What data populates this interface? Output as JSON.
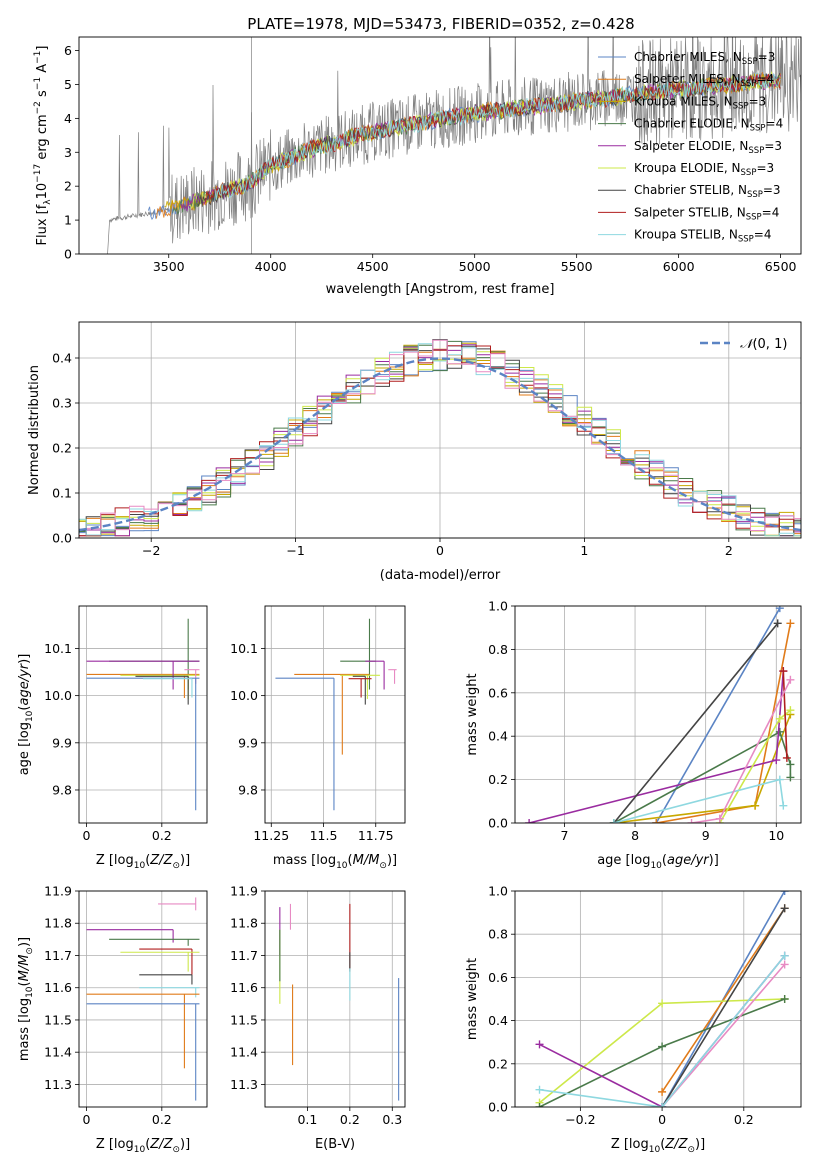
{
  "title": "PLATE=1978, MJD=53473, FIBERID=0352, z=0.428",
  "colors": {
    "Chabrier MILES": "#5b84c4",
    "Salpeter MILES": "#e07b1a",
    "Kroupa MILES": "#c8a800",
    "Chabrier ELODIE": "#4a7a4a",
    "Salpeter ELODIE": "#9a2ca0",
    "Kroupa ELODIE": "#cde84a",
    "Chabrier STELIB": "#444444",
    "Salpeter STELIB": "#b01e1e",
    "Kroupa STELIB": "#8ed8e0",
    "pink": "#e78ac3",
    "data": "#808080"
  },
  "chart_data": [
    {
      "type": "line",
      "id": "spectrum",
      "title": "PLATE=1978, MJD=53473, FIBERID=0352, z=0.428",
      "xlabel": "wavelength [Angstrom, rest frame]",
      "ylabel": "Flux [f_λ 10^-17 erg cm^-2 s^-1 A^-1]",
      "xlim": [
        3060,
        6600
      ],
      "ylim": [
        0,
        6.4
      ],
      "xticks": [
        3500,
        4000,
        4500,
        5000,
        5500,
        6000,
        6500
      ],
      "yticks": [
        0,
        1,
        2,
        3,
        4,
        5,
        6
      ],
      "grid": false,
      "legend_position": "upper right",
      "legend": [
        {
          "label": "Chabrier MILES, N_SSP=3",
          "color": "#5b84c4"
        },
        {
          "label": "Salpeter MILES, N_SSP=4",
          "color": "#e07b1a"
        },
        {
          "label": "Kroupa MILES, N_SSP=3",
          "color": "#c8a800"
        },
        {
          "label": "Chabrier ELODIE, N_SSP=4",
          "color": "#4a7a4a"
        },
        {
          "label": "Salpeter ELODIE, N_SSP=3",
          "color": "#9a2ca0"
        },
        {
          "label": "Kroupa ELODIE, N_SSP=3",
          "color": "#cde84a"
        },
        {
          "label": "Chabrier STELIB, N_SSP=3",
          "color": "#444444"
        },
        {
          "label": "Salpeter STELIB, N_SSP=4",
          "color": "#b01e1e"
        },
        {
          "label": "Kroupa STELIB, N_SSP=4",
          "color": "#8ed8e0"
        }
      ],
      "legend_text": [
        {
          "pre": "Chabrier MILES, N",
          "sub": "SSP",
          "post": "=3"
        },
        {
          "pre": "Salpeter MILES, N",
          "sub": "SSP",
          "post": "=4"
        },
        {
          "pre": "Kroupa MILES, N",
          "sub": "SSP",
          "post": "=3"
        },
        {
          "pre": "Chabrier ELODIE, N",
          "sub": "SSP",
          "post": "=4"
        },
        {
          "pre": "Salpeter ELODIE, N",
          "sub": "SSP",
          "post": "=3"
        },
        {
          "pre": "Kroupa ELODIE, N",
          "sub": "SSP",
          "post": "=3"
        },
        {
          "pre": "Chabrier STELIB, N",
          "sub": "SSP",
          "post": "=3"
        },
        {
          "pre": "Salpeter STELIB, N",
          "sub": "SSP",
          "post": "=4"
        },
        {
          "pre": "Kroupa STELIB, N",
          "sub": "SSP",
          "post": "=4"
        }
      ],
      "trend_wavelength": [
        3200,
        3500,
        3700,
        3900,
        4000,
        4200,
        4500,
        4800,
        5000,
        5500,
        6000,
        6500
      ],
      "trend_flux": [
        1.0,
        1.3,
        1.7,
        2.1,
        2.6,
        3.1,
        3.6,
        3.95,
        4.15,
        4.5,
        4.85,
        5.15
      ]
    },
    {
      "type": "line",
      "id": "residuals",
      "xlabel": "(data-model)/error",
      "ylabel": "Normed distribution",
      "xlim": [
        -2.5,
        2.5
      ],
      "ylim": [
        0,
        0.48
      ],
      "xticks": [
        -2,
        -1,
        0,
        1,
        2
      ],
      "yticks": [
        0.0,
        0.1,
        0.2,
        0.3,
        0.4
      ],
      "grid": true,
      "legend_position": "upper right",
      "legend": [
        {
          "label": "N(0,1)",
          "color": "#5b84c4"
        }
      ]
    },
    {
      "type": "scatter",
      "id": "age_vs_Z",
      "xlabel": "Z [log10(Z/Z_sun)]",
      "ylabel": "age [log10(age/yr)]",
      "xlim": [
        -0.02,
        0.32
      ],
      "ylim": [
        9.73,
        10.19
      ],
      "xticks": [
        0.0,
        0.2
      ],
      "yticks": [
        9.8,
        9.9,
        10.0,
        10.1
      ],
      "grid": true,
      "errorbars": [
        {
          "x": 0.27,
          "y": 10.073,
          "xerr_minus": 0.21,
          "xerr_plus": 0.03,
          "yerr_minus": 0.06,
          "yerr_plus": 0.09,
          "color": "#4a7a4a"
        },
        {
          "x": 0.26,
          "y": 10.045,
          "xerr_minus": 0.26,
          "xerr_plus": 0.04,
          "yerr_minus": 0.05,
          "yerr_plus": 0.0,
          "color": "#e07b1a"
        },
        {
          "x": 0.27,
          "y": 10.043,
          "xerr_minus": 0.18,
          "xerr_plus": 0.03,
          "yerr_minus": 0.05,
          "yerr_plus": 0.0,
          "color": "#cde84a"
        },
        {
          "x": 0.23,
          "y": 10.073,
          "xerr_minus": 0.23,
          "xerr_plus": 0.07,
          "yerr_minus": 0.06,
          "yerr_plus": 0.0,
          "color": "#9a2ca0"
        },
        {
          "x": 0.29,
          "y": 10.055,
          "xerr_minus": 0.03,
          "xerr_plus": 0.01,
          "yerr_minus": 0.03,
          "yerr_plus": 0.0,
          "color": "#e78ac3"
        },
        {
          "x": 0.29,
          "y": 10.037,
          "xerr_minus": 0.29,
          "xerr_plus": 0.01,
          "yerr_minus": 0.28,
          "yerr_plus": 0.0,
          "color": "#5b84c4"
        },
        {
          "x": 0.27,
          "y": 10.041,
          "xerr_minus": 0.14,
          "xerr_plus": 0.0,
          "yerr_minus": 0.06,
          "yerr_plus": 0.0,
          "color": "#444444"
        },
        {
          "x": 0.28,
          "y": 10.036,
          "xerr_minus": 0.13,
          "xerr_plus": 0.0,
          "yerr_minus": 0.04,
          "yerr_plus": 0.0,
          "color": "#8ed8e0"
        }
      ]
    },
    {
      "type": "scatter",
      "id": "age_vs_mass",
      "xlabel": "mass [log10(M/M_sun)]",
      "xlim": [
        11.22,
        11.89
      ],
      "ylim": [
        9.73,
        10.19
      ],
      "xticks": [
        11.25,
        11.5,
        11.75
      ],
      "yticks": [
        9.8,
        9.9,
        10.0,
        10.1
      ],
      "grid": true,
      "errorbars": [
        {
          "x": 11.72,
          "y": 10.073,
          "xerr_minus": 0.14,
          "xerr_plus": 0.03,
          "yerr_minus": 0.06,
          "yerr_plus": 0.09,
          "color": "#4a7a4a"
        },
        {
          "x": 11.59,
          "y": 10.045,
          "xerr_minus": 0.23,
          "xerr_plus": 0.13,
          "yerr_minus": 0.17,
          "yerr_plus": 0.0,
          "color": "#e07b1a"
        },
        {
          "x": 11.71,
          "y": 10.043,
          "xerr_minus": 0.13,
          "xerr_plus": 0.06,
          "yerr_minus": 0.05,
          "yerr_plus": 0.0,
          "color": "#cde84a"
        },
        {
          "x": 11.79,
          "y": 10.073,
          "xerr_minus": 0.09,
          "xerr_plus": 0.0,
          "yerr_minus": 0.06,
          "yerr_plus": 0.0,
          "color": "#9a2ca0"
        },
        {
          "x": 11.84,
          "y": 10.055,
          "xerr_minus": 0.03,
          "xerr_plus": 0.01,
          "yerr_minus": 0.03,
          "yerr_plus": 0.0,
          "color": "#e78ac3"
        },
        {
          "x": 11.55,
          "y": 10.037,
          "xerr_minus": 0.28,
          "xerr_plus": 0.0,
          "yerr_minus": 0.28,
          "yerr_plus": 0.0,
          "color": "#5b84c4"
        },
        {
          "x": 11.7,
          "y": 10.041,
          "xerr_minus": 0.06,
          "xerr_plus": 0.0,
          "yerr_minus": 0.06,
          "yerr_plus": 0.0,
          "color": "#444444"
        },
        {
          "x": 11.68,
          "y": 10.036,
          "xerr_minus": 0.06,
          "xerr_plus": 0.05,
          "yerr_minus": 0.04,
          "yerr_plus": 0.0,
          "color": "#b01e1e"
        }
      ]
    },
    {
      "type": "line",
      "id": "weight_vs_age",
      "xlabel": "age [log10(age/yr)]",
      "ylabel": "mass weight",
      "xlim": [
        6.3,
        10.35
      ],
      "ylim": [
        0,
        1.0
      ],
      "xticks": [
        7,
        8,
        9,
        10
      ],
      "yticks": [
        0.0,
        0.2,
        0.4,
        0.6,
        0.8,
        1.0
      ],
      "grid": true,
      "series": [
        {
          "name": "Chabrier MILES",
          "color": "#5b84c4",
          "x": [
            8.3,
            10.05
          ],
          "y": [
            0.0,
            0.99
          ]
        },
        {
          "name": "Salpeter MILES",
          "color": "#e07b1a",
          "x": [
            8.3,
            9.7,
            10.2
          ],
          "y": [
            0.0,
            0.08,
            0.92
          ]
        },
        {
          "name": "Kroupa MILES",
          "color": "#c8a800",
          "x": [
            7.7,
            9.7,
            10.2
          ],
          "y": [
            0.0,
            0.08,
            0.5
          ]
        },
        {
          "name": "Chabrier ELODIE",
          "color": "#4a7a4a",
          "x": [
            7.7,
            10.05,
            10.2,
            10.2
          ],
          "y": [
            0.0,
            0.42,
            0.27,
            0.21
          ]
        },
        {
          "name": "Salpeter ELODIE",
          "color": "#9a2ca0",
          "x": [
            6.5,
            10.0,
            10.1
          ],
          "y": [
            0.0,
            0.29,
            0.7
          ]
        },
        {
          "name": "Kroupa ELODIE",
          "color": "#cde84a",
          "x": [
            9.2,
            10.05,
            10.2
          ],
          "y": [
            0.0,
            0.48,
            0.52
          ]
        },
        {
          "name": "Chabrier STELIB",
          "color": "#444444",
          "x": [
            7.7,
            10.02
          ],
          "y": [
            0.0,
            0.92
          ]
        },
        {
          "name": "Salpeter STELIB",
          "color": "#b01e1e",
          "x": [
            10.1,
            10.15
          ],
          "y": [
            0.7,
            0.3
          ]
        },
        {
          "name": "Kroupa STELIB",
          "color": "#8ed8e0",
          "x": [
            7.7,
            10.05,
            10.1
          ],
          "y": [
            0.0,
            0.2,
            0.08
          ]
        },
        {
          "name": "pink",
          "color": "#e78ac3",
          "x": [
            8.8,
            9.2,
            10.2
          ],
          "y": [
            0.0,
            0.02,
            0.66
          ]
        }
      ]
    },
    {
      "type": "scatter",
      "id": "mass_vs_Z",
      "xlabel": "Z [log10(Z/Z_sun)]",
      "ylabel": "mass [log10(M/M_sun)]",
      "xlim": [
        -0.02,
        0.32
      ],
      "ylim": [
        11.23,
        11.9
      ],
      "xticks": [
        0.0,
        0.2
      ],
      "yticks": [
        11.3,
        11.4,
        11.5,
        11.6,
        11.7,
        11.8,
        11.9
      ],
      "grid": true,
      "errorbars": [
        {
          "x": 0.29,
          "y": 11.86,
          "xerr_minus": 0.1,
          "xerr_plus": 0.0,
          "yerr_minus": 0.02,
          "yerr_plus": 0.02,
          "color": "#e78ac3"
        },
        {
          "x": 0.23,
          "y": 11.78,
          "xerr_minus": 0.23,
          "xerr_plus": 0.0,
          "yerr_minus": 0.04,
          "yerr_plus": 0.0,
          "color": "#9a2ca0"
        },
        {
          "x": 0.27,
          "y": 11.75,
          "xerr_minus": 0.21,
          "xerr_plus": 0.03,
          "yerr_minus": 0.02,
          "yerr_plus": 0.0,
          "color": "#4a7a4a"
        },
        {
          "x": 0.28,
          "y": 11.72,
          "xerr_minus": 0.14,
          "xerr_plus": 0.0,
          "yerr_minus": 0.08,
          "yerr_plus": 0.0,
          "color": "#b01e1e"
        },
        {
          "x": 0.27,
          "y": 11.71,
          "xerr_minus": 0.18,
          "xerr_plus": 0.03,
          "yerr_minus": 0.06,
          "yerr_plus": 0.0,
          "color": "#cde84a"
        },
        {
          "x": 0.29,
          "y": 11.6,
          "xerr_minus": 0.15,
          "xerr_plus": 0.01,
          "yerr_minus": 0.03,
          "yerr_plus": 0.0,
          "color": "#8ed8e0"
        },
        {
          "x": 0.28,
          "y": 11.64,
          "xerr_minus": 0.14,
          "xerr_plus": 0.0,
          "yerr_minus": 0.03,
          "yerr_plus": 0.0,
          "color": "#444444"
        },
        {
          "x": 0.26,
          "y": 11.58,
          "xerr_minus": 0.26,
          "xerr_plus": 0.04,
          "yerr_minus": 0.23,
          "yerr_plus": 0.0,
          "color": "#e07b1a"
        },
        {
          "x": 0.29,
          "y": 11.55,
          "xerr_minus": 0.29,
          "xerr_plus": 0.01,
          "yerr_minus": 0.3,
          "yerr_plus": 0.0,
          "color": "#5b84c4"
        }
      ]
    },
    {
      "type": "scatter",
      "id": "mass_vs_ebv",
      "xlabel": "E(B-V)",
      "xlim": [
        0.0,
        0.33
      ],
      "ylim": [
        11.23,
        11.9
      ],
      "xticks": [
        0.1,
        0.2,
        0.3
      ],
      "yticks": [
        11.3,
        11.4,
        11.5,
        11.6,
        11.7,
        11.8,
        11.9
      ],
      "grid": true,
      "errorbars": [
        {
          "x": 0.06,
          "y": 11.82,
          "yerr_minus": 0.04,
          "yerr_plus": 0.04,
          "color": "#e78ac3"
        },
        {
          "x": 0.035,
          "y": 11.78,
          "yerr_minus": 0.08,
          "yerr_plus": 0.07,
          "color": "#9a2ca0"
        },
        {
          "x": 0.035,
          "y": 11.7,
          "yerr_minus": 0.15,
          "yerr_plus": 0.08,
          "color": "#cde84a"
        },
        {
          "x": 0.035,
          "y": 11.68,
          "yerr_minus": 0.06,
          "yerr_plus": 0.1,
          "color": "#4a7a4a"
        },
        {
          "x": 0.065,
          "y": 11.48,
          "yerr_minus": 0.12,
          "yerr_plus": 0.13,
          "color": "#e07b1a"
        },
        {
          "x": 0.2,
          "y": 11.78,
          "yerr_minus": 0.12,
          "yerr_plus": 0.08,
          "color": "#b01e1e"
        },
        {
          "x": 0.2,
          "y": 11.68,
          "yerr_minus": 0.03,
          "yerr_plus": 0.03,
          "color": "#444444"
        },
        {
          "x": 0.2,
          "y": 11.6,
          "yerr_minus": 0.04,
          "yerr_plus": 0.06,
          "color": "#8ed8e0"
        },
        {
          "x": 0.315,
          "y": 11.45,
          "yerr_minus": 0.2,
          "yerr_plus": 0.18,
          "color": "#5b84c4"
        }
      ]
    },
    {
      "type": "line",
      "id": "weight_vs_Z",
      "xlabel": "Z [log10(Z/Z_sun)]",
      "ylabel": "mass weight",
      "xlim": [
        -0.36,
        0.34
      ],
      "ylim": [
        0,
        1.0
      ],
      "xticks": [
        -0.2,
        0.0,
        0.2
      ],
      "yticks": [
        0.0,
        0.2,
        0.4,
        0.6,
        0.8,
        1.0
      ],
      "grid": true,
      "series": [
        {
          "name": "Chabrier MILES",
          "color": "#5b84c4",
          "x": [
            0.0,
            0.3
          ],
          "y": [
            0.0,
            1.0
          ]
        },
        {
          "name": "Salpeter MILES",
          "color": "#e07b1a",
          "x": [
            0.0,
            0.3
          ],
          "y": [
            0.07,
            0.92
          ]
        },
        {
          "name": "Kroupa ELODIE",
          "color": "#cde84a",
          "x": [
            -0.3,
            0.0,
            0.3
          ],
          "y": [
            0.02,
            0.48,
            0.5
          ]
        },
        {
          "name": "Chabrier ELODIE",
          "color": "#4a7a4a",
          "x": [
            -0.3,
            0.0,
            0.3
          ],
          "y": [
            0.0,
            0.28,
            0.5
          ]
        },
        {
          "name": "Salpeter ELODIE",
          "color": "#9a2ca0",
          "x": [
            -0.3,
            0.0,
            0.3
          ],
          "y": [
            0.29,
            0.0,
            0.7
          ]
        },
        {
          "name": "Chabrier STELIB",
          "color": "#444444",
          "x": [
            0.0,
            0.3
          ],
          "y": [
            0.0,
            0.92
          ]
        },
        {
          "name": "pink",
          "color": "#e78ac3",
          "x": [
            0.0,
            0.3
          ],
          "y": [
            0.0,
            0.66
          ]
        },
        {
          "name": "Kroupa STELIB",
          "color": "#8ed8e0",
          "x": [
            -0.3,
            0.0,
            0.3
          ],
          "y": [
            0.08,
            0.0,
            0.7
          ]
        }
      ]
    }
  ]
}
